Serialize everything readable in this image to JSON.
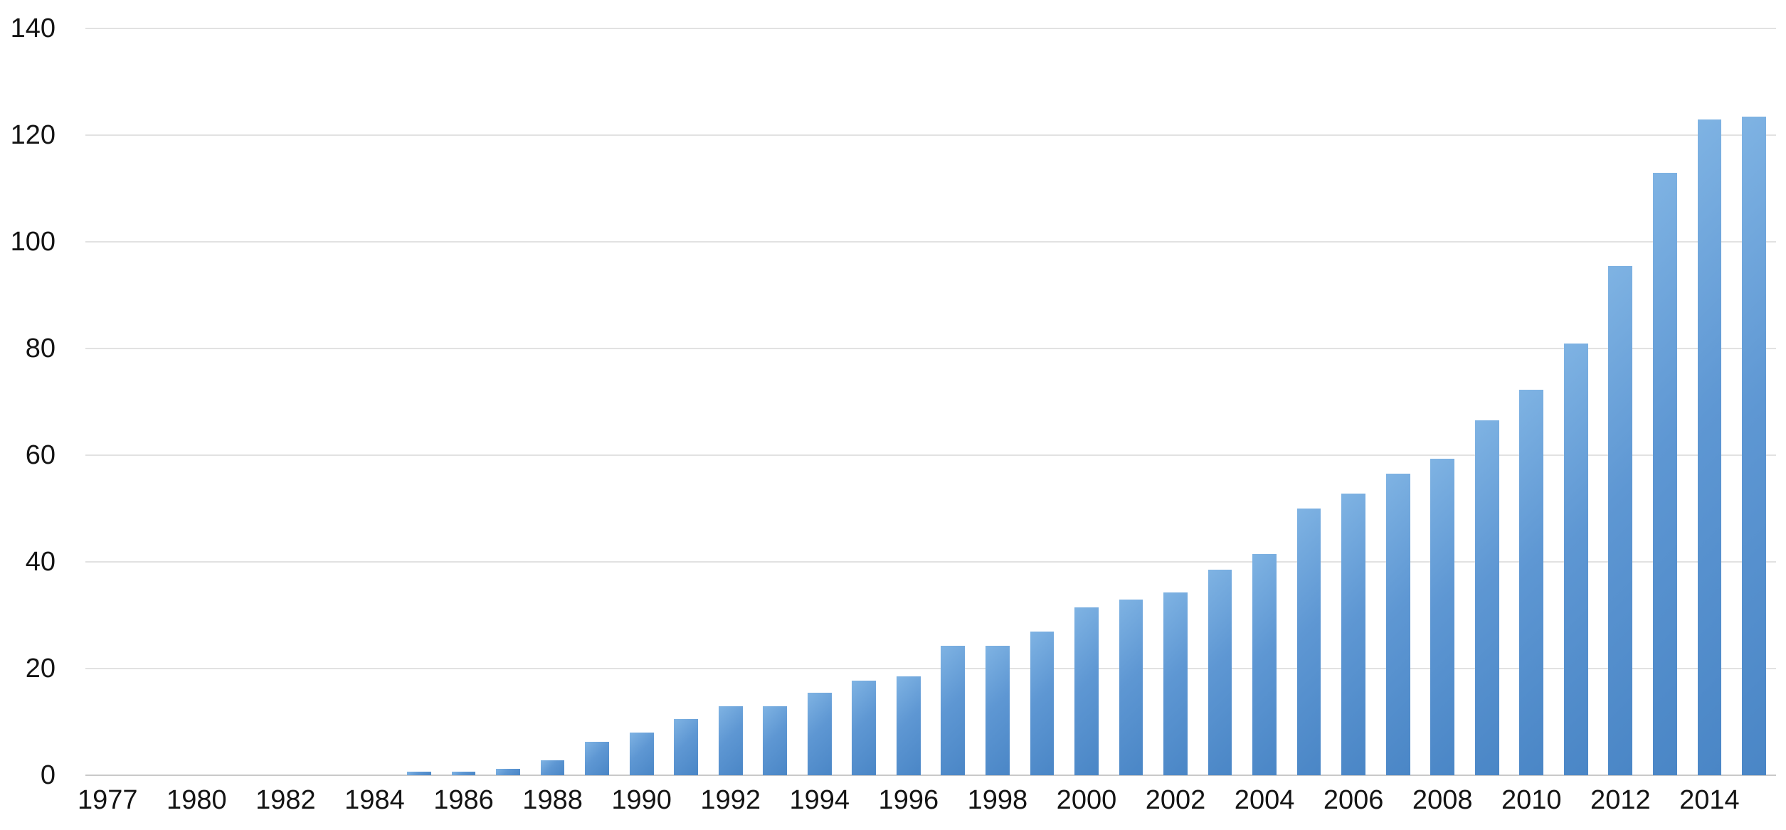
{
  "chart_data": {
    "type": "bar",
    "title": "",
    "xlabel": "",
    "ylabel": "",
    "ylim": [
      0,
      140
    ],
    "yticks": [
      0,
      20,
      40,
      60,
      80,
      100,
      120,
      140
    ],
    "grid": "horizontal",
    "legend": "none",
    "bar_color": "#5b93cf",
    "bar_gradient": [
      "#7fb3e3",
      "#4a86c6"
    ],
    "gridline_color": "#e2e2e2",
    "axis_line_color": "#c9c9c9",
    "x_tick_labels_shown": [
      "1977",
      "1980",
      "1982",
      "1984",
      "1986",
      "1988",
      "1990",
      "1992",
      "1994",
      "1996",
      "1998",
      "2000",
      "2002",
      "2004",
      "2006",
      "2008",
      "2010",
      "2012",
      "2014"
    ],
    "bars": [
      {
        "label": "1977",
        "value": 0
      },
      {
        "label": "",
        "value": 0
      },
      {
        "label": "1980",
        "value": 0
      },
      {
        "label": "",
        "value": 0
      },
      {
        "label": "1982",
        "value": 0
      },
      {
        "label": "",
        "value": 0
      },
      {
        "label": "1984",
        "value": 0
      },
      {
        "label": "",
        "value": 0.7
      },
      {
        "label": "1986",
        "value": 0.7
      },
      {
        "label": "",
        "value": 1.2
      },
      {
        "label": "1988",
        "value": 2.8
      },
      {
        "label": "",
        "value": 6.3
      },
      {
        "label": "1990",
        "value": 8
      },
      {
        "label": "",
        "value": 10.5
      },
      {
        "label": "1992",
        "value": 13
      },
      {
        "label": "",
        "value": 13
      },
      {
        "label": "1994",
        "value": 15.5
      },
      {
        "label": "",
        "value": 17.8
      },
      {
        "label": "1996",
        "value": 18.5
      },
      {
        "label": "",
        "value": 24.3
      },
      {
        "label": "1998",
        "value": 24.3
      },
      {
        "label": "",
        "value": 27
      },
      {
        "label": "2000",
        "value": 31.5
      },
      {
        "label": "",
        "value": 33
      },
      {
        "label": "2002",
        "value": 34.3
      },
      {
        "label": "",
        "value": 38.5
      },
      {
        "label": "2004",
        "value": 41.5
      },
      {
        "label": "",
        "value": 50
      },
      {
        "label": "2006",
        "value": 52.8
      },
      {
        "label": "",
        "value": 56.5
      },
      {
        "label": "2008",
        "value": 59.3
      },
      {
        "label": "",
        "value": 66.5
      },
      {
        "label": "2010",
        "value": 72.3
      },
      {
        "label": "",
        "value": 81
      },
      {
        "label": "2012",
        "value": 95.5
      },
      {
        "label": "",
        "value": 113
      },
      {
        "label": "2014",
        "value": 123
      },
      {
        "label": "",
        "value": 123.5
      }
    ]
  }
}
